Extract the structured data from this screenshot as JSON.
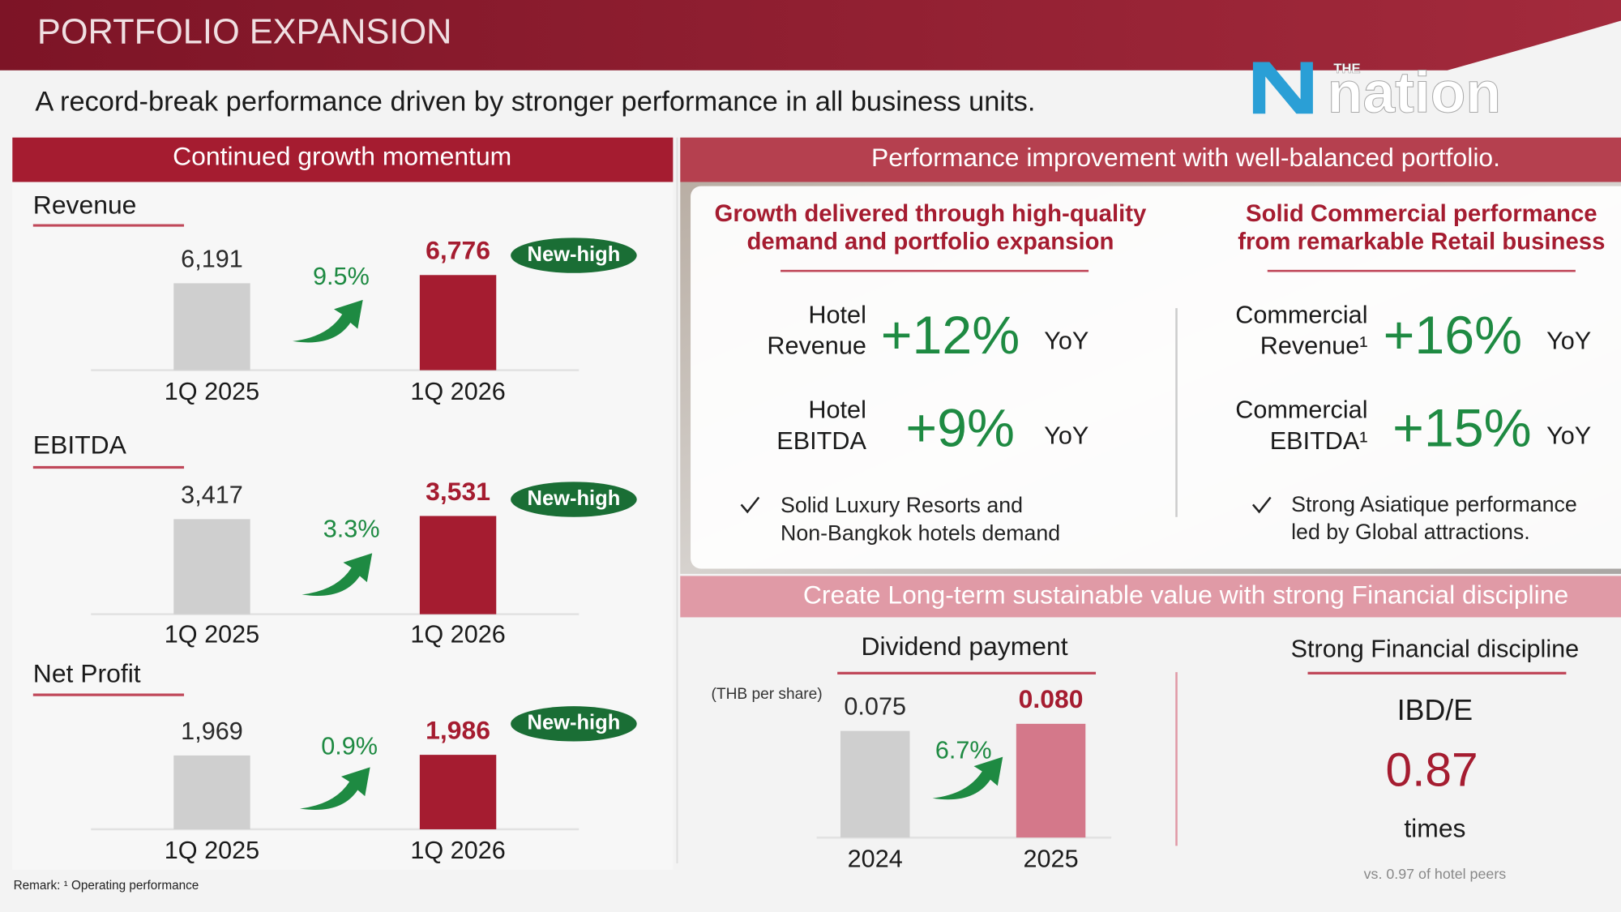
{
  "title": "PORTFOLIO EXPANSION",
  "subtitle": "A record-break performance driven by stronger performance in all business units.",
  "logo": {
    "small": "THE",
    "name": "nation"
  },
  "left_header": "Continued growth momentum",
  "right_header": "Performance improvement with well-balanced portfolio.",
  "panels": [
    {
      "heading": [
        "Growth delivered through high-quality",
        "demand and portfolio expansion"
      ],
      "metrics": [
        {
          "label": [
            "Hotel",
            "Revenue"
          ],
          "value": "+12%",
          "unit": "YoY"
        },
        {
          "label": [
            "Hotel",
            "EBITDA"
          ],
          "value": "+9%",
          "unit": "YoY"
        }
      ],
      "note": [
        "Solid Luxury Resorts and",
        "Non-Bangkok hotels demand"
      ]
    },
    {
      "heading": [
        "Solid Commercial performance",
        "from remarkable Retail business"
      ],
      "metrics": [
        {
          "label": [
            "Commercial",
            "Revenue¹"
          ],
          "value": "+16%",
          "unit": "YoY"
        },
        {
          "label": [
            "Commercial",
            "EBITDA¹"
          ],
          "value": "+15%",
          "unit": "YoY"
        }
      ],
      "note": [
        "Strong Asiatique performance",
        "led by Global attractions."
      ]
    }
  ],
  "banner": "Create Long-term sustainable value with strong Financial discipline",
  "discipline": {
    "heading": "Strong Financial discipline",
    "metric": "IBD/E",
    "value": "0.87",
    "unit": "times",
    "note": "vs. 0.97 of hotel peers"
  },
  "remark": "Remark: ¹ Operating performance",
  "chart_data": [
    {
      "type": "bar",
      "title": "Revenue",
      "categories": [
        "1Q 2025",
        "1Q 2026"
      ],
      "values": [
        6191,
        6776
      ],
      "value_labels": [
        "6,191",
        "6,776"
      ],
      "colors": [
        "#cfcfcf",
        "#a51c30"
      ],
      "annotation": "9.5%",
      "badge": "New-high"
    },
    {
      "type": "bar",
      "title": "EBITDA",
      "categories": [
        "1Q 2025",
        "1Q 2026"
      ],
      "values": [
        3417,
        3531
      ],
      "value_labels": [
        "3,417",
        "3,531"
      ],
      "colors": [
        "#cfcfcf",
        "#a51c30"
      ],
      "annotation": "3.3%",
      "badge": "New-high"
    },
    {
      "type": "bar",
      "title": "Net Profit",
      "categories": [
        "1Q 2025",
        "1Q 2026"
      ],
      "values": [
        1969,
        1986
      ],
      "value_labels": [
        "1,969",
        "1,986"
      ],
      "colors": [
        "#cfcfcf",
        "#a51c30"
      ],
      "annotation": "0.9%",
      "badge": "New-high"
    },
    {
      "type": "bar",
      "title": "Dividend payment",
      "subtitle": "(THB per share)",
      "categories": [
        "2024",
        "2025"
      ],
      "values": [
        0.075,
        0.08
      ],
      "value_labels": [
        "0.075",
        "0.080"
      ],
      "colors": [
        "#cfcfcf",
        "#d4788a"
      ],
      "annotation": "6.7%"
    }
  ]
}
